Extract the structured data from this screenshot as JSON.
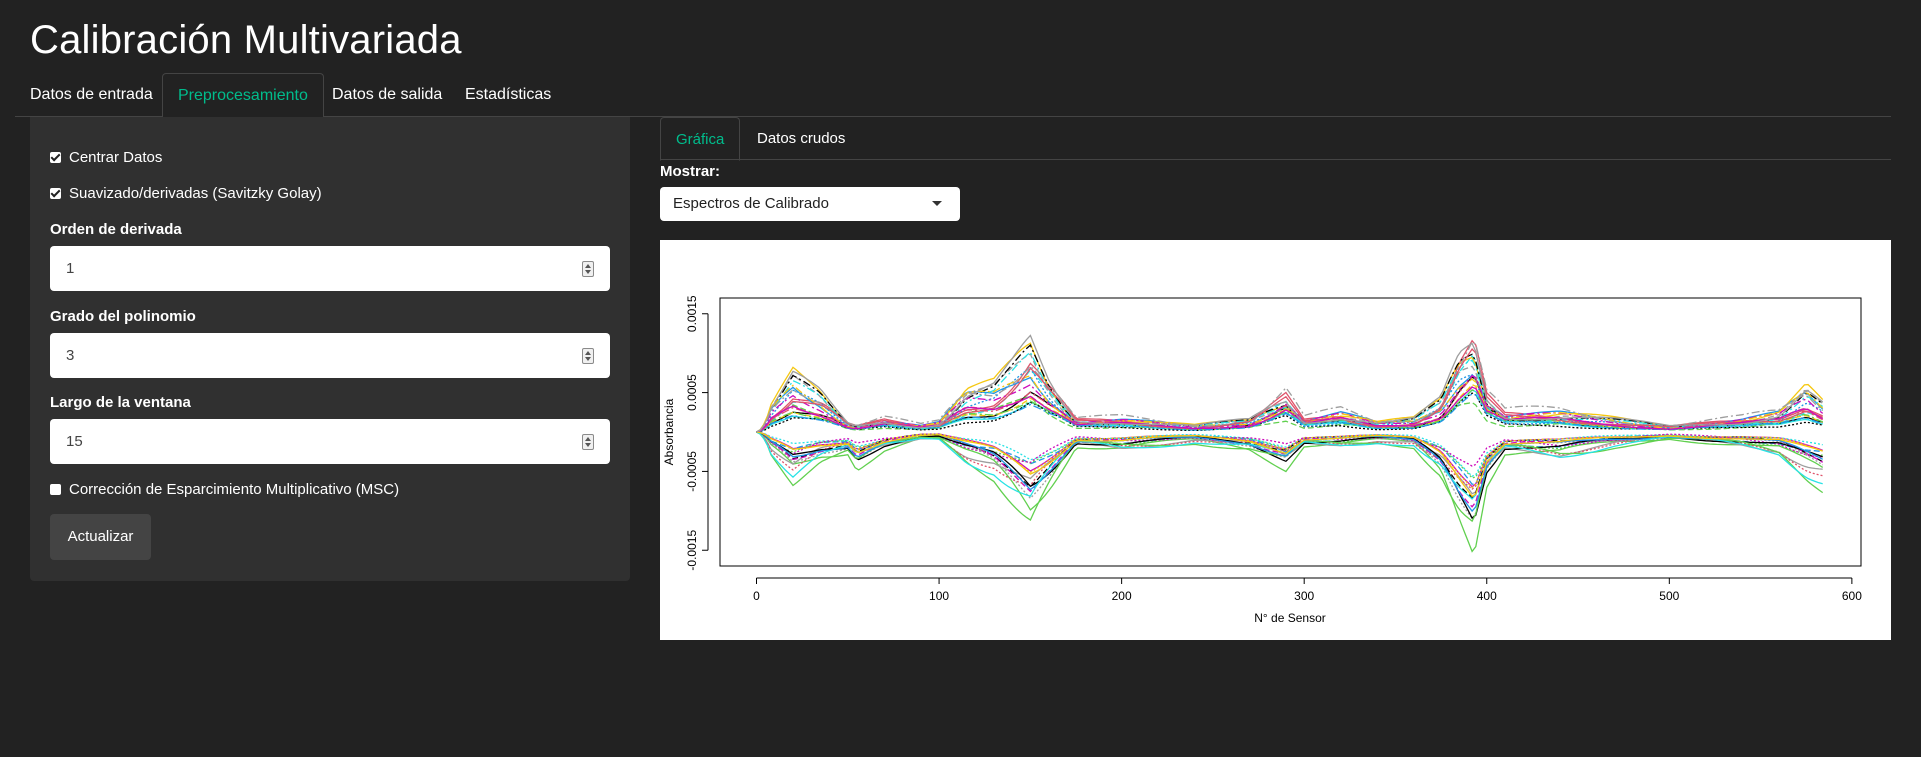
{
  "app": {
    "title": "Calibración Multivariada"
  },
  "main_tabs": [
    {
      "label": "Datos de entrada",
      "active": false
    },
    {
      "label": "Preprocesamiento",
      "active": true
    },
    {
      "label": "Datos de salida",
      "active": false
    },
    {
      "label": "Estadísticas",
      "active": false
    }
  ],
  "sidebar": {
    "center_checkbox": {
      "label": "Centrar Datos",
      "checked": true
    },
    "savgol_checkbox": {
      "label": "Suavizado/derivadas (Savitzky Golay)",
      "checked": true
    },
    "derivative_order": {
      "label": "Orden de derivada",
      "value": "1"
    },
    "polynomial_degree": {
      "label": "Grado del polinomio",
      "value": "3"
    },
    "window_length": {
      "label": "Largo de la ventana",
      "value": "15"
    },
    "msc_checkbox": {
      "label": "Corrección de Esparcimiento Multiplicativo (MSC)",
      "checked": false
    },
    "update_button": "Actualizar"
  },
  "sub_tabs": [
    {
      "label": "Gráfica",
      "active": true
    },
    {
      "label": "Datos crudos",
      "active": false
    }
  ],
  "show": {
    "label": "Mostrar:",
    "selected": "Espectros de Calibrado"
  },
  "colors": {
    "accent": "#00bc8c",
    "background": "#222222",
    "panel": "#303030"
  },
  "chart_data": {
    "type": "line",
    "title": "",
    "xlabel": "N° de Sensor",
    "ylabel": "Absorbancia",
    "xlim": [
      -20,
      605
    ],
    "ylim": [
      -0.0017,
      0.0017
    ],
    "xticks": [
      0,
      100,
      200,
      300,
      400,
      500,
      600
    ],
    "yticks": [
      -0.0015,
      -0.0005,
      0.0005,
      0.0015
    ],
    "ytick_labels": [
      "-0.0015",
      "-0.0005",
      "0.0005",
      "0.0015"
    ],
    "grid": false,
    "legend": "none",
    "n_series": 40,
    "sensor_range": [
      0,
      585
    ],
    "palette": [
      "#000000",
      "#DF536B",
      "#61D04F",
      "#2297E6",
      "#28E2E5",
      "#CD0BBC",
      "#F5C710",
      "#9E9E9E"
    ],
    "envelope": {
      "x": [
        0,
        20,
        35,
        50,
        55,
        70,
        90,
        100,
        115,
        130,
        140,
        150,
        160,
        175,
        200,
        240,
        270,
        290,
        300,
        320,
        340,
        360,
        375,
        385,
        393,
        400,
        410,
        420,
        440,
        470,
        500,
        540,
        560,
        575,
        585
      ],
      "max": [
        5e-05,
        0.00085,
        0.0006,
        0.00015,
        0.0001,
        0.0002,
        0.0001,
        0.00015,
        0.0006,
        0.0007,
        0.001,
        0.00135,
        0.0008,
        0.0002,
        0.0002,
        0.0001,
        0.0002,
        0.0006,
        0.0002,
        0.0003,
        0.00015,
        0.0002,
        0.0005,
        0.0012,
        0.0015,
        0.0006,
        0.0003,
        0.0003,
        0.0003,
        0.0002,
        0.0001,
        0.0002,
        0.0003,
        0.00065,
        0.0004
      ],
      "min": [
        -5e-05,
        -0.00065,
        -0.0004,
        -0.0003,
        -0.0005,
        -0.00025,
        -0.0001,
        -0.0001,
        -0.0004,
        -0.0006,
        -0.0009,
        -0.0012,
        -0.0008,
        -0.0002,
        -0.00025,
        -0.00015,
        -0.00025,
        -0.0005,
        -0.0002,
        -0.0002,
        -0.00015,
        -0.0002,
        -0.0006,
        -0.0012,
        -0.0016,
        -0.0007,
        -0.0003,
        -0.0003,
        -0.00035,
        -0.0002,
        -0.0001,
        -0.0002,
        -0.0003,
        -0.0006,
        -0.00075
      ]
    }
  }
}
